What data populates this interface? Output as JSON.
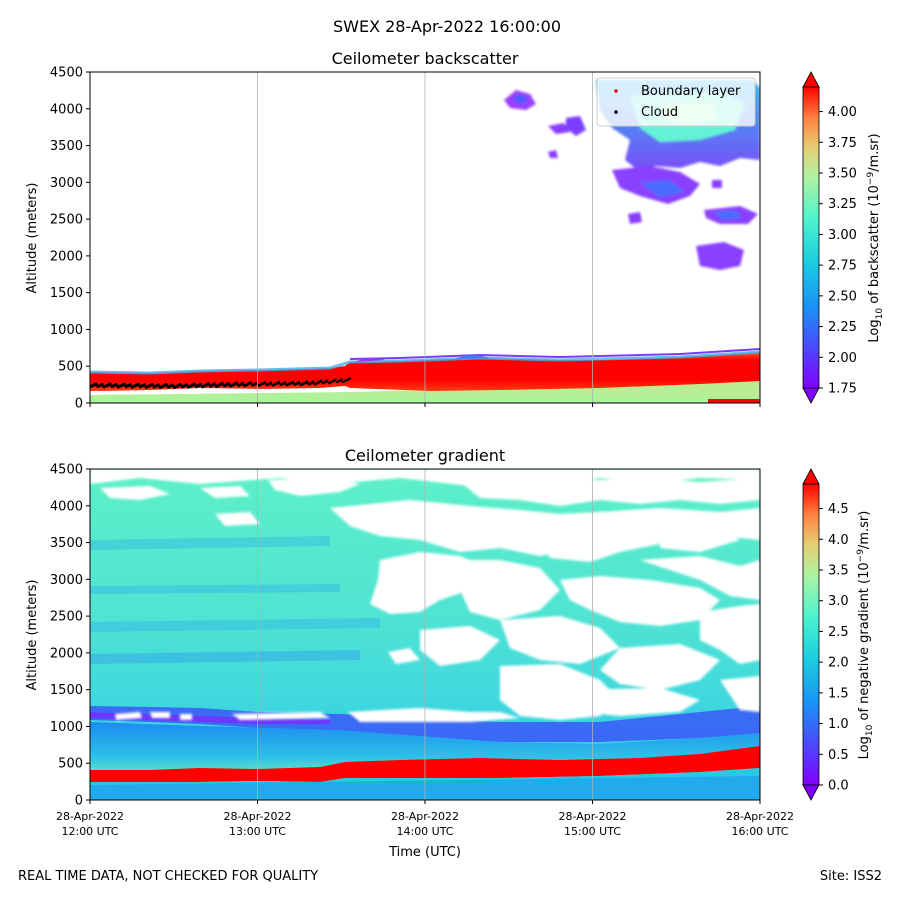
{
  "figure": {
    "suptitle": "SWEX 28-Apr-2022 16:00:00",
    "footer_left": "REAL TIME DATA, NOT CHECKED FOR QUALITY",
    "footer_right": "Site: ISS2"
  },
  "chart_data": [
    {
      "type": "heatmap",
      "title": "Ceilometer backscatter",
      "xlabel": "",
      "ylabel": "Altitude (meters)",
      "ylim": [
        0,
        4500
      ],
      "yticks": [
        0,
        500,
        1000,
        1500,
        2000,
        2500,
        3000,
        3500,
        4000,
        4500
      ],
      "x_time_range_hours": [
        12,
        16
      ],
      "grid_x_hours": [
        13,
        14,
        15
      ],
      "colorbar": {
        "label_base": "Log",
        "label_sub": "10",
        "label_mid": " of backscatter (10",
        "label_sup": "−9",
        "label_end": "/m.sr)",
        "min": 1.75,
        "max": 4.2,
        "ticks": [
          "1.75",
          "2.00",
          "2.25",
          "2.50",
          "2.75",
          "3.00",
          "3.25",
          "3.50",
          "3.75",
          "4.00"
        ]
      },
      "legend": {
        "position": "top-right",
        "entries": [
          {
            "label": "Boundary layer",
            "color": "#ff0000"
          },
          {
            "label": "Cloud",
            "color": "#000000"
          }
        ]
      },
      "boundary_layer_m": [
        {
          "hour": 12.0,
          "alt": 300
        },
        {
          "hour": 12.5,
          "alt": 280
        },
        {
          "hour": 13.0,
          "alt": 290
        },
        {
          "hour": 13.3,
          "alt": 300
        },
        {
          "hour": 13.55,
          "alt": 340
        }
      ],
      "cloud_base_m": [
        {
          "hour": 12.0,
          "alt": 240
        },
        {
          "hour": 12.5,
          "alt": 230
        },
        {
          "hour": 13.0,
          "alt": 260
        },
        {
          "hour": 13.3,
          "alt": 270
        },
        {
          "hour": 13.55,
          "alt": 320
        }
      ]
    },
    {
      "type": "heatmap",
      "title": "Ceilometer gradient",
      "xlabel": "Time (UTC)",
      "ylabel": "Altitude (meters)",
      "ylim": [
        0,
        4500
      ],
      "yticks": [
        0,
        500,
        1000,
        1500,
        2000,
        2500,
        3000,
        3500,
        4000,
        4500
      ],
      "x_time_range_hours": [
        12,
        16
      ],
      "grid_x_hours": [
        13,
        14,
        15
      ],
      "xticks": [
        {
          "date": "28-Apr-2022",
          "time": "12:00 UTC"
        },
        {
          "date": "28-Apr-2022",
          "time": "13:00 UTC"
        },
        {
          "date": "28-Apr-2022",
          "time": "14:00 UTC"
        },
        {
          "date": "28-Apr-2022",
          "time": "15:00 UTC"
        },
        {
          "date": "28-Apr-2022",
          "time": "16:00 UTC"
        }
      ],
      "colorbar": {
        "label_base": "Log",
        "label_sub": "10",
        "label_mid": " of negative gradient (10",
        "label_sup": "−9",
        "label_end": "/m.sr)",
        "min": 0.0,
        "max": 4.9,
        "ticks": [
          "0.0",
          "0.5",
          "1.0",
          "1.5",
          "2.0",
          "2.5",
          "3.0",
          "3.5",
          "4.0",
          "4.5"
        ]
      }
    }
  ]
}
